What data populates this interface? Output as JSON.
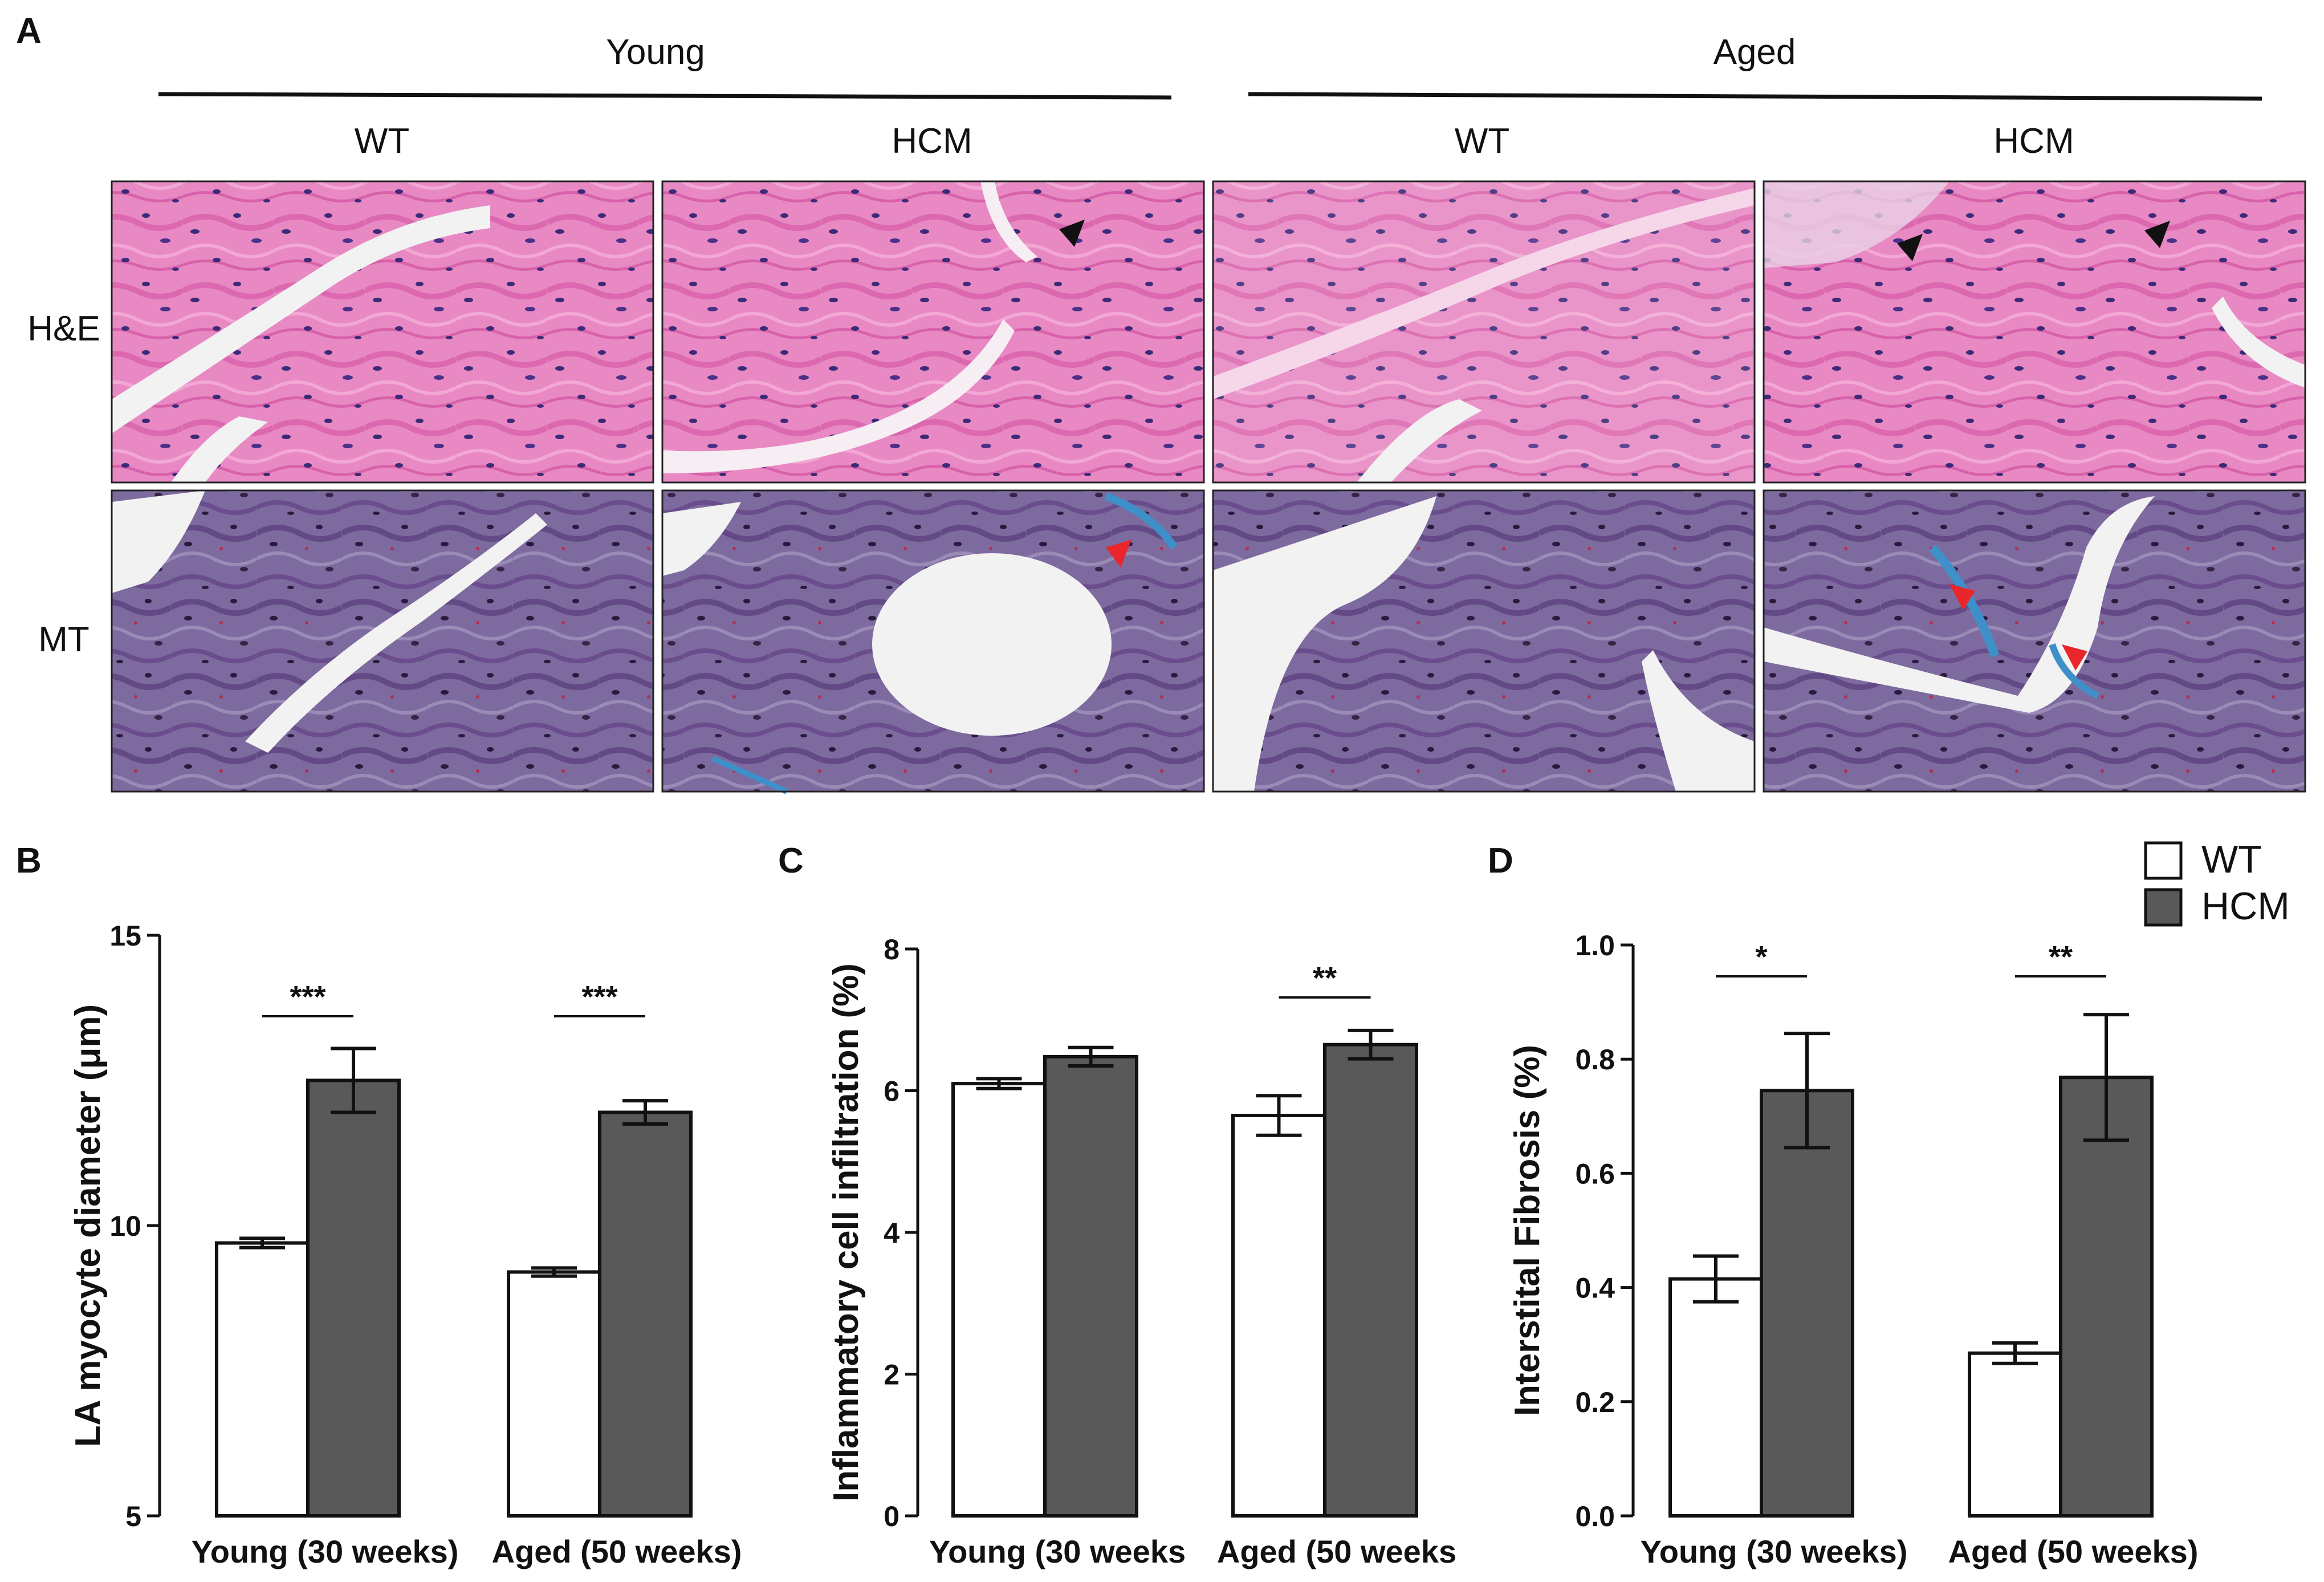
{
  "panel_a": {
    "letter": "A",
    "groups": [
      {
        "label": "Young",
        "columns": [
          "WT",
          "HCM"
        ]
      },
      {
        "label": "Aged",
        "columns": [
          "WT",
          "HCM"
        ]
      }
    ],
    "rows": [
      "H&E",
      "MT"
    ],
    "stain_colors": {
      "he_base": "#e889c4",
      "he_fiber": "#de6db3",
      "he_nucleus": "#3a2a78",
      "mt_base": "#7d6a9e",
      "mt_fiber": "#6a4d8c",
      "mt_fibrosis": "#3f8fc8",
      "space": "#f2f2f2"
    },
    "arrow_colors": {
      "black": "#111111",
      "red": "#e8262b"
    }
  },
  "legend": {
    "items": [
      "WT",
      "HCM"
    ],
    "colors": {
      "WT": "#ffffff",
      "HCM": "#595959"
    }
  },
  "chart_data": [
    {
      "panel": "B",
      "type": "bar",
      "ylabel": "LA myocyte diameter (μm)",
      "ylim": [
        5,
        15
      ],
      "yticks": [
        "5",
        "10",
        "15"
      ],
      "categories": [
        "Young (30 weeks)",
        "Aged (50 weeks)"
      ],
      "series": [
        {
          "name": "WT",
          "values": [
            9.7,
            9.2
          ],
          "errors": [
            0.08,
            0.07
          ]
        },
        {
          "name": "HCM",
          "values": [
            12.5,
            11.95
          ],
          "errors": [
            0.55,
            0.2
          ]
        }
      ],
      "significance": [
        "***",
        "***"
      ]
    },
    {
      "panel": "C",
      "type": "bar",
      "ylabel": "Inflammatory cell infiltration  (%)",
      "ylim": [
        0,
        8
      ],
      "yticks": [
        "0",
        "2",
        "4",
        "6",
        "8"
      ],
      "categories": [
        "Young (30 weeks",
        "Aged (50 weeks"
      ],
      "series": [
        {
          "name": "WT",
          "values": [
            6.1,
            5.65
          ],
          "errors": [
            0.07,
            0.28
          ]
        },
        {
          "name": "HCM",
          "values": [
            6.48,
            6.65
          ],
          "errors": [
            0.13,
            0.2
          ]
        }
      ],
      "significance": [
        "",
        "**"
      ]
    },
    {
      "panel": "D",
      "type": "bar",
      "ylabel": "Interstital Fibrosis (%)",
      "ylim": [
        0,
        1.0
      ],
      "yticks": [
        "0.0",
        "0.2",
        "0.4",
        "0.6",
        "0.8",
        "1.0"
      ],
      "categories": [
        "Young (30 weeks)",
        "Aged (50 weeks)"
      ],
      "series": [
        {
          "name": "WT",
          "values": [
            0.415,
            0.285
          ],
          "errors": [
            0.04,
            0.018
          ]
        },
        {
          "name": "HCM",
          "values": [
            0.745,
            0.768
          ],
          "errors": [
            0.1,
            0.11
          ]
        }
      ],
      "significance": [
        "*",
        "**"
      ]
    }
  ]
}
